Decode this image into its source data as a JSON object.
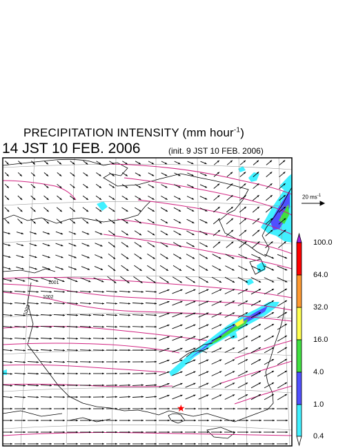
{
  "title": {
    "main": "PRECIPITATION INTENSITY (mm hour",
    "sup": "-1",
    "close": ")"
  },
  "time_label": "14 JST 10 FEB. 2006",
  "init_label": "(init. 9 JST 10 FEB. 2006)",
  "wind_scale": {
    "value": "20 ms",
    "sup": "-1"
  },
  "isobar_labels": [
    "1001",
    "1002",
    "1003"
  ],
  "colorbar": {
    "labels": [
      "100.0",
      "64.0",
      "32.0",
      "16.0",
      "4.0",
      "1.0",
      "0.4"
    ],
    "colors": [
      "#a61ee0",
      "#ff0000",
      "#ff9930",
      "#ffff50",
      "#40e040",
      "#5050ff",
      "#40f0ff"
    ]
  },
  "colors": {
    "isobar": "#d0207f",
    "coast": "#000000",
    "grid": "#999999",
    "marker": "#ff0000"
  }
}
